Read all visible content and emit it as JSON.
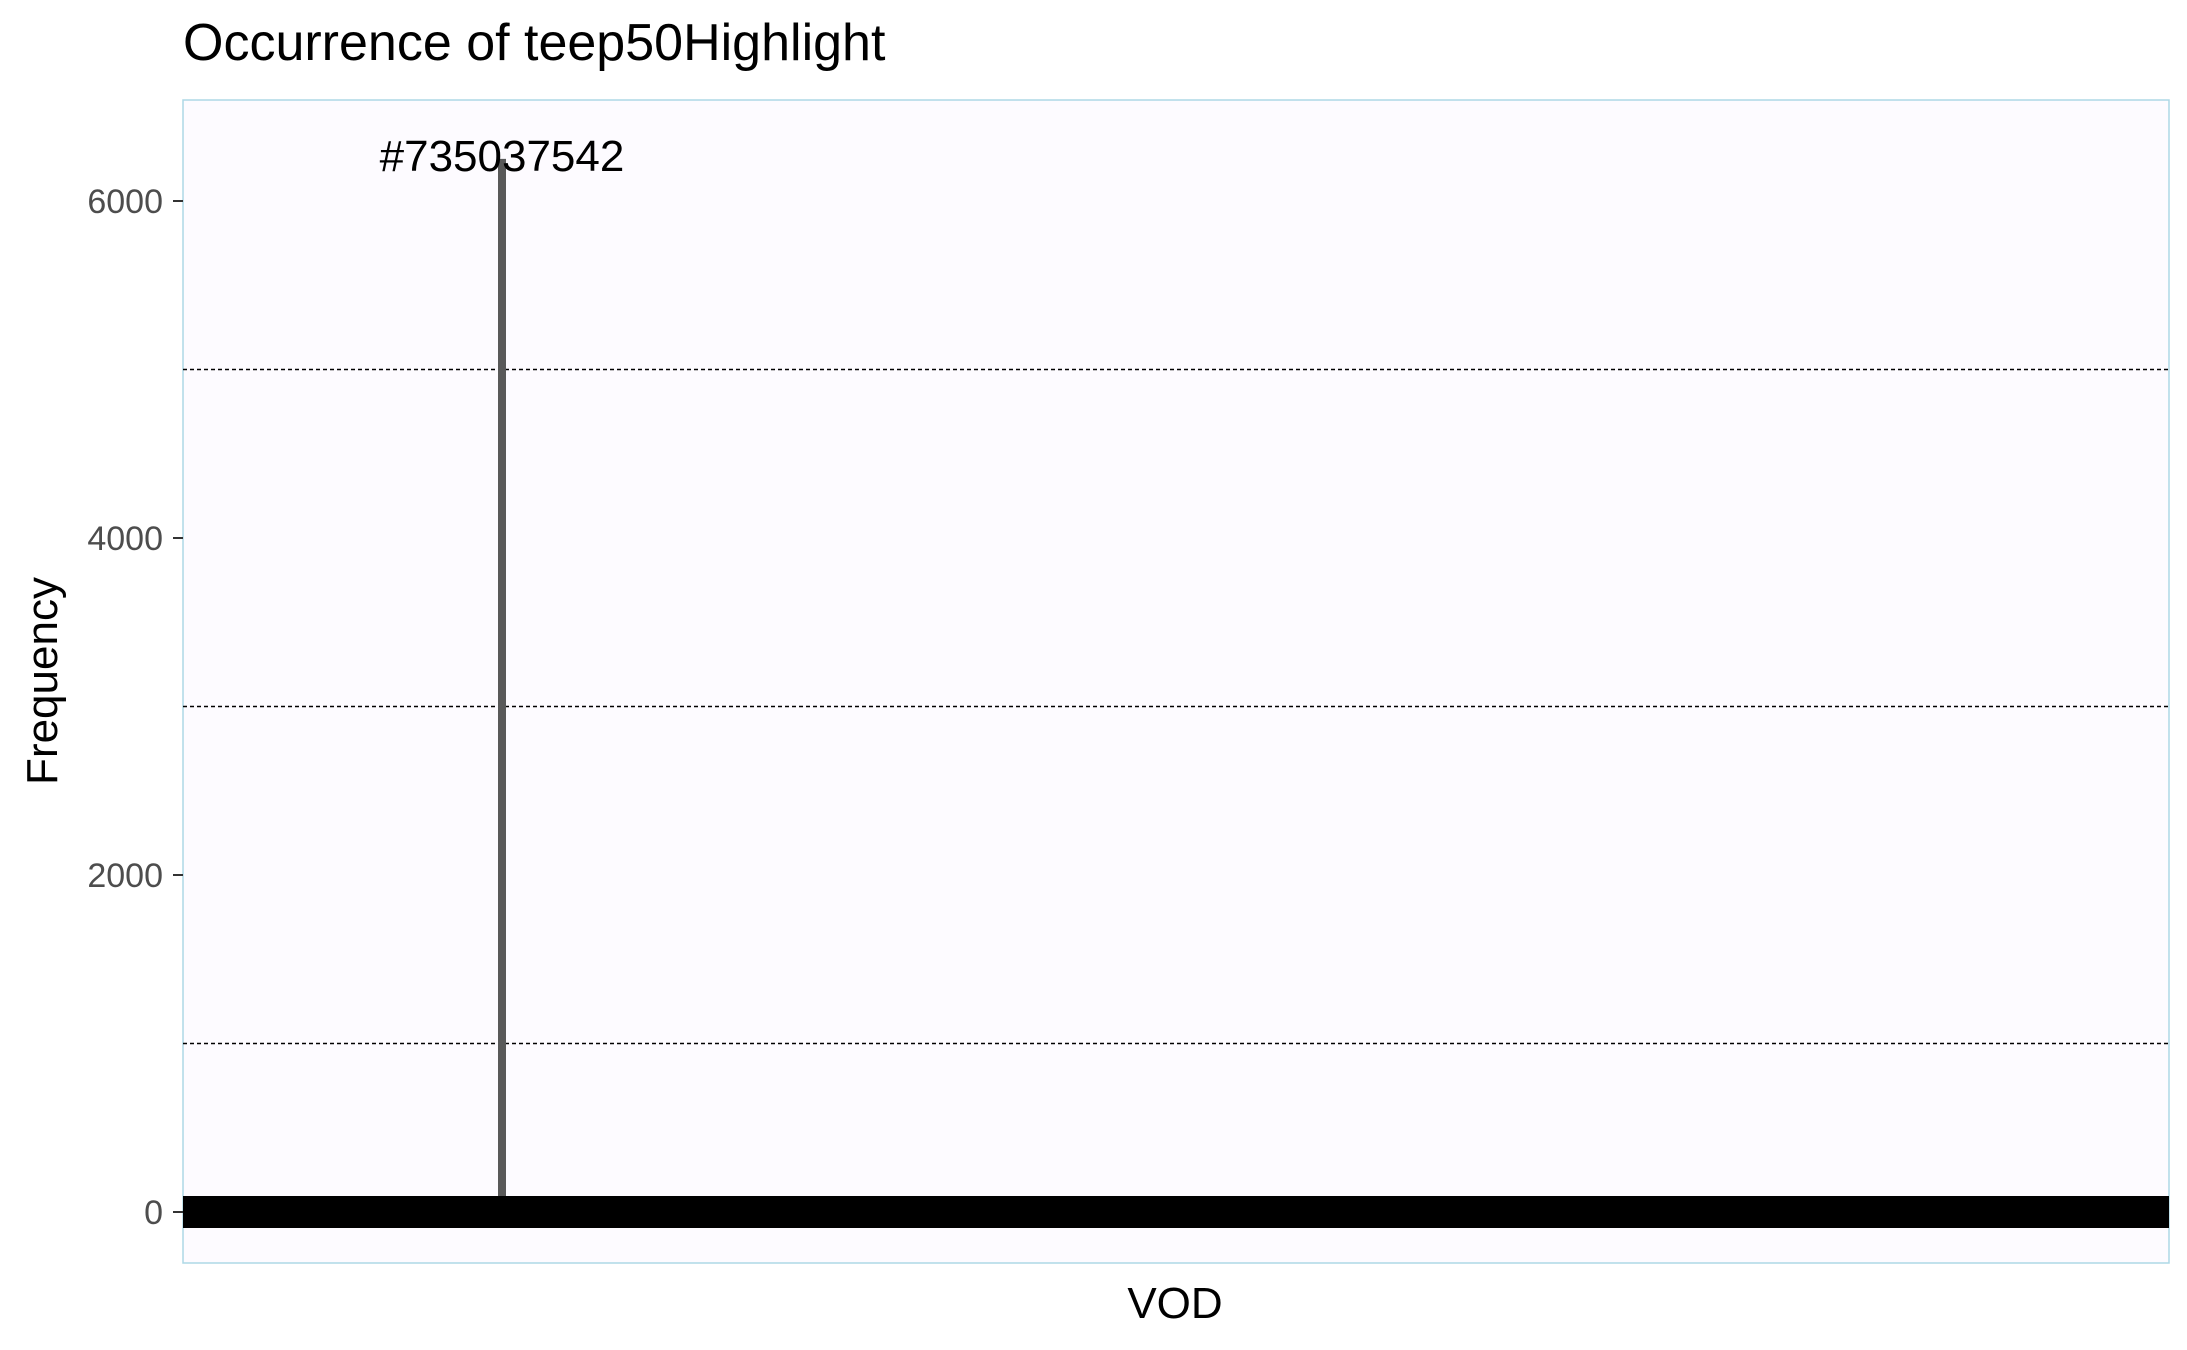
{
  "colors": {
    "panel_background": "#fdfbff",
    "panel_border": "#add8e6",
    "dashed_gridline": "#000000",
    "spike": "#595959",
    "baseline_band": "#000000",
    "tick_label": "#4d4d4d",
    "text": "#000000"
  },
  "chart_data": {
    "type": "bar",
    "title": "Occurrence of teep50Highlight",
    "xlabel": "VOD",
    "ylabel": "Frequency",
    "ylim": [
      -300,
      6600
    ],
    "yticks": [
      0,
      2000,
      4000,
      6000
    ],
    "dashed_gridlines": [
      1000,
      3000,
      5000
    ],
    "x_tick_labels_visible": false,
    "grid": "minor dashed horizontal lines at 1000, 3000, 5000",
    "legend": "none",
    "series": [
      {
        "values_note_free": true,
        "highlighted_bar": {
          "category": "#735037542",
          "value": 6250
        },
        "baseline_value": 0
      }
    ],
    "annotations": [
      {
        "text": "#735037542",
        "x": "#735037542",
        "y": 6250
      }
    ]
  }
}
